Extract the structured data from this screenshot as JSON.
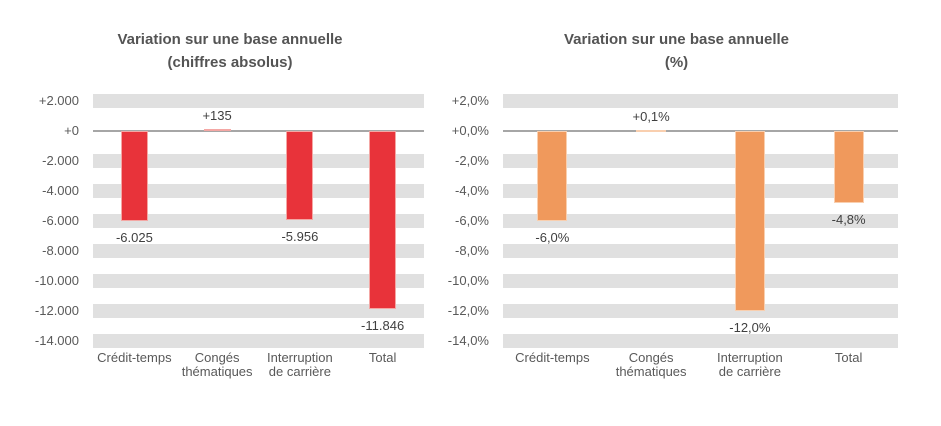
{
  "chart_data": [
    {
      "type": "bar",
      "title": [
        "Variation sur une base annuelle",
        "(chiffres absolus)"
      ],
      "categories": [
        "Crédit-temps",
        "Congés\nthématiques",
        "Interruption\nde carrière",
        "Total"
      ],
      "values": [
        -6025,
        135,
        -5956,
        -11846
      ],
      "data_labels": [
        "-6.025",
        "+135",
        "-5.956",
        "-11.846"
      ],
      "ytick_labels": [
        "+2.000",
        "+0",
        "-2.000",
        "-4.000",
        "-6.000",
        "-8.000",
        "-10.000",
        "-12.000",
        "-14.000"
      ],
      "ylim": [
        -14000,
        2000
      ],
      "units_per_tick": 2000,
      "grid": "banded",
      "legend": "none",
      "bar_color": "#E8333A",
      "bar_border_color": "#F4A7A4",
      "band_color": "#E0E0E0",
      "zero_line_color": "#A6A6A6"
    },
    {
      "type": "bar",
      "title": [
        "Variation sur une base annuelle",
        "(%)"
      ],
      "categories": [
        "Crédit-temps",
        "Congés\nthématiques",
        "Interruption\nde carrière",
        "Total"
      ],
      "values": [
        -6.0,
        0.1,
        -12.0,
        -4.8
      ],
      "data_labels": [
        "-6,0%",
        "+0,1%",
        "-12,0%",
        "-4,8%"
      ],
      "ytick_labels": [
        "+2,0%",
        "+0,0%",
        "-2,0%",
        "-4,0%",
        "-6,0%",
        "-8,0%",
        "-10,0%",
        "-12,0%",
        "-14,0%"
      ],
      "ylim": [
        -14,
        2
      ],
      "units_per_tick": 2,
      "grid": "banded",
      "legend": "none",
      "bar_color": "#F0995C",
      "bar_border_color": "#F9CFAF",
      "band_color": "#E0E0E0",
      "zero_line_color": "#A6A6A6"
    }
  ]
}
